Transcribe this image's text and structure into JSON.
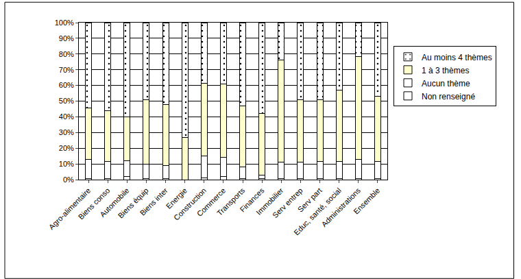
{
  "chart_data": {
    "type": "bar",
    "stacked": true,
    "grid": true,
    "legend": "right",
    "categories": [
      "Agro-alimentaire",
      "Biens conso",
      "Automobile",
      "Biens équip",
      "Biens inter",
      "Energie",
      "Construction",
      "Commerce",
      "Transports",
      "Finances",
      "Immobilier",
      "Serv entrep",
      "Serv part",
      "Educ, santé, social",
      "Administrations",
      "Ensemble"
    ],
    "series": [
      {
        "name": "Non renseigné",
        "color": "#ffffff",
        "values": [
          0.5,
          0.5,
          2,
          0.5,
          0.5,
          0,
          1,
          2,
          0.5,
          0.5,
          0.5,
          0.5,
          0.5,
          0.5,
          0.5,
          0.5
        ]
      },
      {
        "name": "Aucun thème",
        "color": "#ffffff",
        "values": [
          12.5,
          11,
          10,
          9.5,
          8.5,
          0,
          14,
          12,
          7.5,
          2.5,
          10.5,
          10.5,
          11,
          11,
          12.5,
          11
        ]
      },
      {
        "name": "1 à 3 thèmes",
        "color": "#ffffcc",
        "values": [
          32.5,
          32.5,
          28,
          41,
          39,
          27,
          46.5,
          47,
          39,
          39,
          65,
          40,
          39.5,
          45.5,
          65.5,
          41.5
        ]
      },
      {
        "name": "Au moins 4 thèmes",
        "color": "#ffffff",
        "marker": "dotted",
        "values": [
          54.5,
          56,
          60,
          49,
          52,
          73,
          38.5,
          39,
          53,
          58,
          24,
          49,
          49,
          43,
          21.5,
          47
        ]
      }
    ],
    "ylim": [
      0,
      100
    ],
    "yticks": [
      {
        "value": 0,
        "label": "0%"
      },
      {
        "value": 10,
        "label": "10%"
      },
      {
        "value": 20,
        "label": "20%"
      },
      {
        "value": 30,
        "label": "30%"
      },
      {
        "value": 40,
        "label": "40%"
      },
      {
        "value": 50,
        "label": "50%"
      },
      {
        "value": 60,
        "label": "60%"
      },
      {
        "value": 70,
        "label": "70%"
      },
      {
        "value": 80,
        "label": "80%"
      },
      {
        "value": 90,
        "label": "90%"
      },
      {
        "value": 100,
        "label": "100%"
      }
    ]
  }
}
